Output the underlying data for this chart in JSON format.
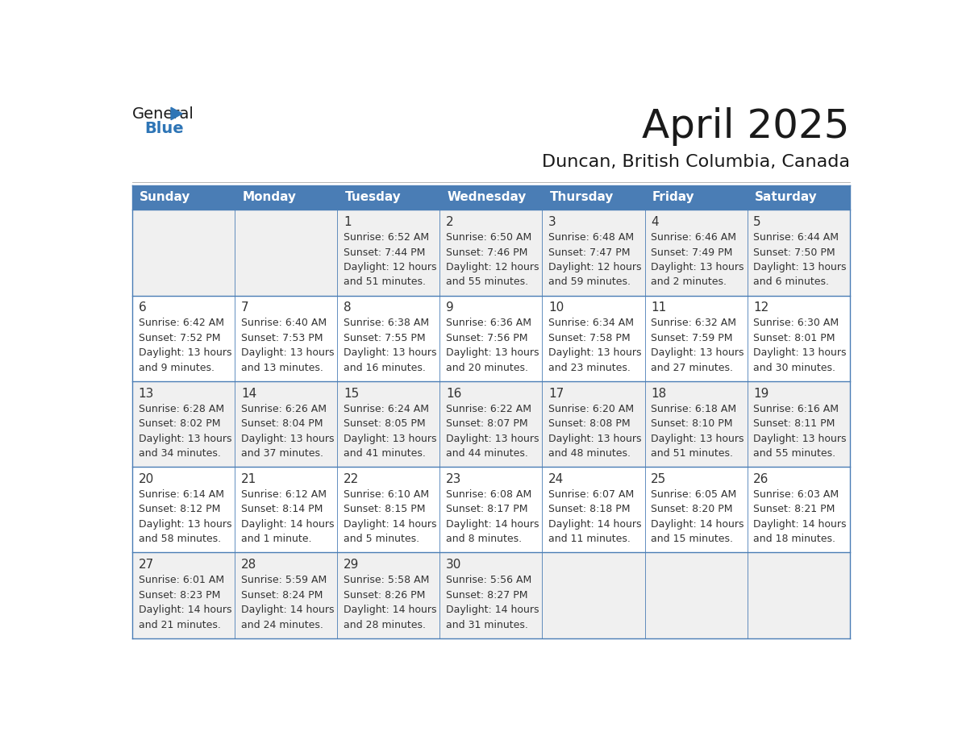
{
  "title": "April 2025",
  "subtitle": "Duncan, British Columbia, Canada",
  "days_of_week": [
    "Sunday",
    "Monday",
    "Tuesday",
    "Wednesday",
    "Thursday",
    "Friday",
    "Saturday"
  ],
  "header_bg": "#4A7DB5",
  "header_text": "#FFFFFF",
  "row_bg_odd": "#F0F0F0",
  "row_bg_even": "#FFFFFF",
  "day_num_bg_odd": "#E8E8E8",
  "day_num_bg_even": "#F8F8F8",
  "border_color": "#4A7DB5",
  "text_color": "#333333",
  "calendar_data": [
    [
      {
        "day": "",
        "sunrise": "",
        "sunset": "",
        "daylight": ""
      },
      {
        "day": "",
        "sunrise": "",
        "sunset": "",
        "daylight": ""
      },
      {
        "day": "1",
        "sunrise": "6:52 AM",
        "sunset": "7:44 PM",
        "daylight": "12 hours\nand 51 minutes."
      },
      {
        "day": "2",
        "sunrise": "6:50 AM",
        "sunset": "7:46 PM",
        "daylight": "12 hours\nand 55 minutes."
      },
      {
        "day": "3",
        "sunrise": "6:48 AM",
        "sunset": "7:47 PM",
        "daylight": "12 hours\nand 59 minutes."
      },
      {
        "day": "4",
        "sunrise": "6:46 AM",
        "sunset": "7:49 PM",
        "daylight": "13 hours\nand 2 minutes."
      },
      {
        "day": "5",
        "sunrise": "6:44 AM",
        "sunset": "7:50 PM",
        "daylight": "13 hours\nand 6 minutes."
      }
    ],
    [
      {
        "day": "6",
        "sunrise": "6:42 AM",
        "sunset": "7:52 PM",
        "daylight": "13 hours\nand 9 minutes."
      },
      {
        "day": "7",
        "sunrise": "6:40 AM",
        "sunset": "7:53 PM",
        "daylight": "13 hours\nand 13 minutes."
      },
      {
        "day": "8",
        "sunrise": "6:38 AM",
        "sunset": "7:55 PM",
        "daylight": "13 hours\nand 16 minutes."
      },
      {
        "day": "9",
        "sunrise": "6:36 AM",
        "sunset": "7:56 PM",
        "daylight": "13 hours\nand 20 minutes."
      },
      {
        "day": "10",
        "sunrise": "6:34 AM",
        "sunset": "7:58 PM",
        "daylight": "13 hours\nand 23 minutes."
      },
      {
        "day": "11",
        "sunrise": "6:32 AM",
        "sunset": "7:59 PM",
        "daylight": "13 hours\nand 27 minutes."
      },
      {
        "day": "12",
        "sunrise": "6:30 AM",
        "sunset": "8:01 PM",
        "daylight": "13 hours\nand 30 minutes."
      }
    ],
    [
      {
        "day": "13",
        "sunrise": "6:28 AM",
        "sunset": "8:02 PM",
        "daylight": "13 hours\nand 34 minutes."
      },
      {
        "day": "14",
        "sunrise": "6:26 AM",
        "sunset": "8:04 PM",
        "daylight": "13 hours\nand 37 minutes."
      },
      {
        "day": "15",
        "sunrise": "6:24 AM",
        "sunset": "8:05 PM",
        "daylight": "13 hours\nand 41 minutes."
      },
      {
        "day": "16",
        "sunrise": "6:22 AM",
        "sunset": "8:07 PM",
        "daylight": "13 hours\nand 44 minutes."
      },
      {
        "day": "17",
        "sunrise": "6:20 AM",
        "sunset": "8:08 PM",
        "daylight": "13 hours\nand 48 minutes."
      },
      {
        "day": "18",
        "sunrise": "6:18 AM",
        "sunset": "8:10 PM",
        "daylight": "13 hours\nand 51 minutes."
      },
      {
        "day": "19",
        "sunrise": "6:16 AM",
        "sunset": "8:11 PM",
        "daylight": "13 hours\nand 55 minutes."
      }
    ],
    [
      {
        "day": "20",
        "sunrise": "6:14 AM",
        "sunset": "8:12 PM",
        "daylight": "13 hours\nand 58 minutes."
      },
      {
        "day": "21",
        "sunrise": "6:12 AM",
        "sunset": "8:14 PM",
        "daylight": "14 hours\nand 1 minute."
      },
      {
        "day": "22",
        "sunrise": "6:10 AM",
        "sunset": "8:15 PM",
        "daylight": "14 hours\nand 5 minutes."
      },
      {
        "day": "23",
        "sunrise": "6:08 AM",
        "sunset": "8:17 PM",
        "daylight": "14 hours\nand 8 minutes."
      },
      {
        "day": "24",
        "sunrise": "6:07 AM",
        "sunset": "8:18 PM",
        "daylight": "14 hours\nand 11 minutes."
      },
      {
        "day": "25",
        "sunrise": "6:05 AM",
        "sunset": "8:20 PM",
        "daylight": "14 hours\nand 15 minutes."
      },
      {
        "day": "26",
        "sunrise": "6:03 AM",
        "sunset": "8:21 PM",
        "daylight": "14 hours\nand 18 minutes."
      }
    ],
    [
      {
        "day": "27",
        "sunrise": "6:01 AM",
        "sunset": "8:23 PM",
        "daylight": "14 hours\nand 21 minutes."
      },
      {
        "day": "28",
        "sunrise": "5:59 AM",
        "sunset": "8:24 PM",
        "daylight": "14 hours\nand 24 minutes."
      },
      {
        "day": "29",
        "sunrise": "5:58 AM",
        "sunset": "8:26 PM",
        "daylight": "14 hours\nand 28 minutes."
      },
      {
        "day": "30",
        "sunrise": "5:56 AM",
        "sunset": "8:27 PM",
        "daylight": "14 hours\nand 31 minutes."
      },
      {
        "day": "",
        "sunrise": "",
        "sunset": "",
        "daylight": ""
      },
      {
        "day": "",
        "sunrise": "",
        "sunset": "",
        "daylight": ""
      },
      {
        "day": "",
        "sunrise": "",
        "sunset": "",
        "daylight": ""
      }
    ]
  ],
  "logo_text_general": "General",
  "logo_text_blue": "Blue",
  "logo_color_general": "#1a1a1a",
  "logo_color_blue": "#2E75B6",
  "logo_triangle_color": "#2E75B6",
  "title_fontsize": 36,
  "subtitle_fontsize": 16,
  "header_fontsize": 11,
  "day_num_fontsize": 11,
  "cell_text_fontsize": 9
}
